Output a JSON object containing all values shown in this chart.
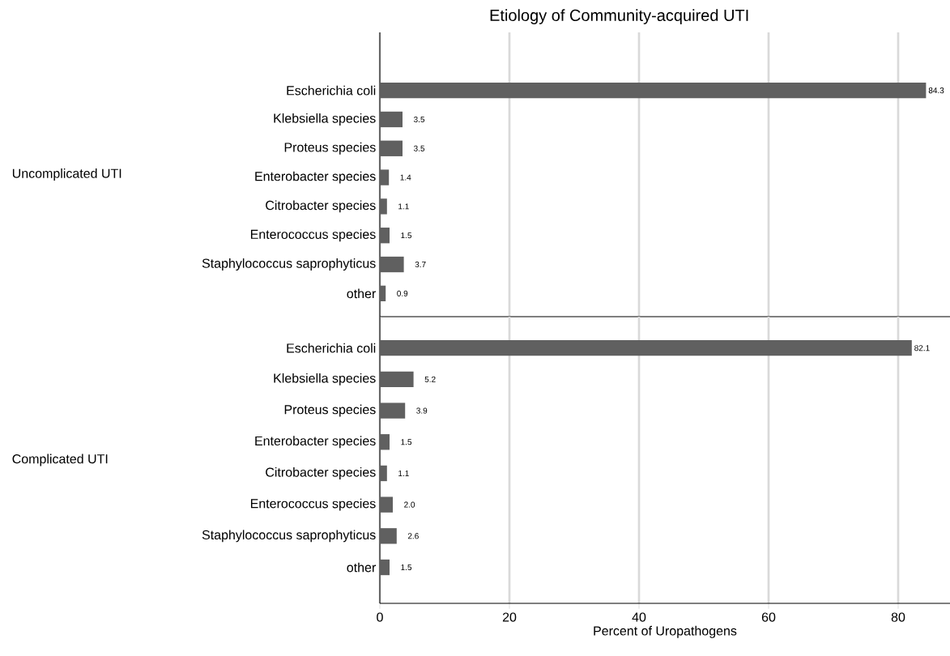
{
  "chart_data": [
    {
      "type": "bar",
      "orientation": "horizontal",
      "title": "Etiology of Community-acquired UTI",
      "ylabel": "Uncomplicated UTI",
      "categories": [
        "Escherichia coli",
        "Klebsiella species",
        "Proteus species",
        "Enterobacter species",
        "Citrobacter species",
        "Enterococcus species",
        "Staphylococcus saprophyticus",
        "other"
      ],
      "values": [
        84.3,
        3.5,
        3.5,
        1.4,
        1.1,
        1.5,
        3.7,
        0.9
      ],
      "color": "#606060",
      "data_labels": true,
      "xlim": [
        0,
        88
      ],
      "xticks": [
        0,
        20,
        40,
        60,
        80
      ],
      "grid": "x",
      "tick_labels": "y"
    },
    {
      "type": "bar",
      "orientation": "horizontal",
      "ylabel": "Complicated UTI",
      "xlabel": "Percent of Uropathogens",
      "categories": [
        "Escherichia coli",
        "Klebsiella species",
        "Proteus species",
        "Enterobacter species",
        "Citrobacter species",
        "Enterococcus species",
        "Staphylococcus saprophyticus",
        "other"
      ],
      "values": [
        82.1,
        5.2,
        3.9,
        1.5,
        1.1,
        2.0,
        2.6,
        1.5
      ],
      "color": "#606060",
      "value_labels": [
        "82.1",
        "5.2",
        "3.9",
        "1.5",
        "1.1",
        "2.0",
        "2.6",
        "1.5"
      ],
      "xlim": [
        0,
        88
      ],
      "xticks": [
        0,
        20,
        40,
        60,
        80
      ],
      "grid": "x"
    }
  ]
}
